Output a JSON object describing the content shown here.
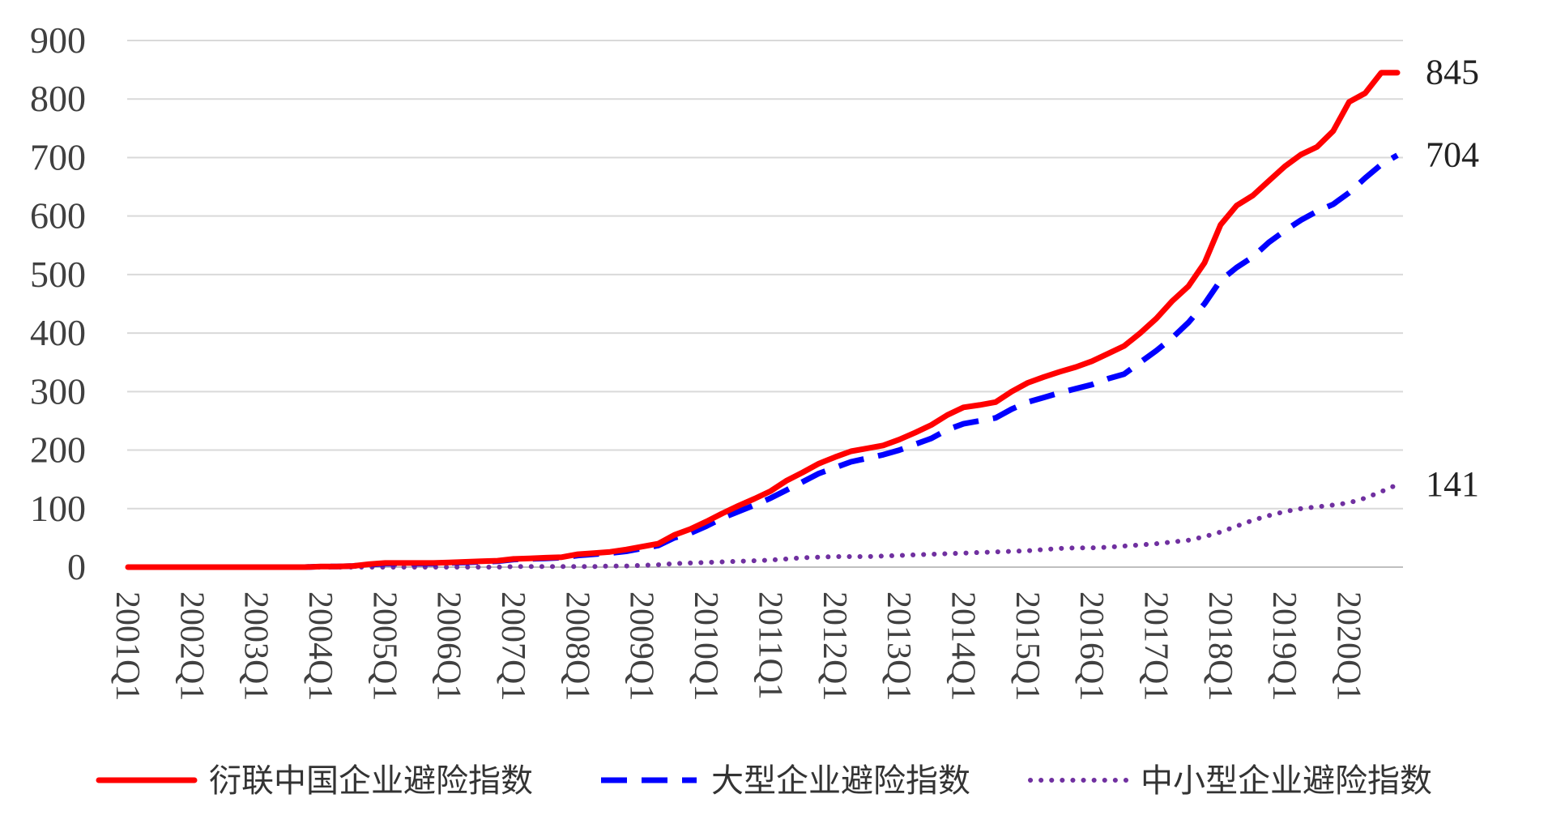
{
  "chart_data": {
    "type": "line",
    "title": "",
    "xlabel": "",
    "ylabel": "",
    "ylim": [
      0,
      900
    ],
    "y_ticks": [
      0,
      100,
      200,
      300,
      400,
      500,
      600,
      700,
      800,
      900
    ],
    "x_ticks": [
      "2001Q1",
      "2002Q1",
      "2003Q1",
      "2004Q1",
      "2005Q1",
      "2006Q1",
      "2007Q1",
      "2008Q1",
      "2009Q1",
      "2010Q1",
      "2011Q1",
      "2012Q1",
      "2013Q1",
      "2014Q1",
      "2015Q1",
      "2016Q1",
      "2017Q1",
      "2018Q1",
      "2019Q1",
      "2020Q1"
    ],
    "grid": "horizontal",
    "legend_position": "bottom",
    "x": [
      "2001Q1",
      "2001Q2",
      "2001Q3",
      "2001Q4",
      "2002Q1",
      "2002Q2",
      "2002Q3",
      "2002Q4",
      "2003Q1",
      "2003Q2",
      "2003Q3",
      "2003Q4",
      "2004Q1",
      "2004Q2",
      "2004Q3",
      "2004Q4",
      "2005Q1",
      "2005Q2",
      "2005Q3",
      "2005Q4",
      "2006Q1",
      "2006Q2",
      "2006Q3",
      "2006Q4",
      "2007Q1",
      "2007Q2",
      "2007Q3",
      "2007Q4",
      "2008Q1",
      "2008Q2",
      "2008Q3",
      "2008Q4",
      "2009Q1",
      "2009Q2",
      "2009Q3",
      "2009Q4",
      "2010Q1",
      "2010Q2",
      "2010Q3",
      "2010Q4",
      "2011Q1",
      "2011Q2",
      "2011Q3",
      "2011Q4",
      "2012Q1",
      "2012Q2",
      "2012Q3",
      "2012Q4",
      "2013Q1",
      "2013Q2",
      "2013Q3",
      "2013Q4",
      "2014Q1",
      "2014Q2",
      "2014Q3",
      "2014Q4",
      "2015Q1",
      "2015Q2",
      "2015Q3",
      "2015Q4",
      "2016Q1",
      "2016Q2",
      "2016Q3",
      "2016Q4",
      "2017Q1",
      "2017Q2",
      "2017Q3",
      "2017Q4",
      "2018Q1",
      "2018Q2",
      "2018Q3",
      "2018Q4",
      "2019Q1",
      "2019Q2",
      "2019Q3",
      "2019Q4",
      "2020Q1",
      "2020Q2",
      "2020Q3",
      "2020Q4"
    ],
    "series": [
      {
        "name": "衍联中国企业避险指数",
        "color": "#ff0000",
        "style": "solid",
        "end_label": "845",
        "values": [
          0,
          0,
          0,
          0,
          0,
          0,
          0,
          0,
          0,
          0,
          0,
          0,
          1,
          1,
          2,
          5,
          7,
          7,
          7,
          7,
          8,
          9,
          10,
          11,
          14,
          15,
          16,
          17,
          22,
          24,
          26,
          30,
          35,
          40,
          55,
          65,
          78,
          92,
          105,
          117,
          130,
          148,
          162,
          177,
          188,
          198,
          203,
          208,
          218,
          230,
          243,
          260,
          273,
          277,
          282,
          300,
          315,
          325,
          334,
          342,
          352,
          365,
          378,
          400,
          425,
          455,
          480,
          520,
          585,
          618,
          635,
          660,
          685,
          705,
          718,
          745,
          795,
          810,
          845,
          845
        ]
      },
      {
        "name": "大型企业避险指数",
        "color": "#0000ff",
        "style": "dashed",
        "end_label": "704",
        "values": [
          0,
          0,
          0,
          0,
          0,
          0,
          0,
          0,
          0,
          0,
          0,
          0,
          1,
          1,
          2,
          4,
          6,
          6,
          6,
          6,
          7,
          8,
          9,
          10,
          13,
          14,
          15,
          16,
          20,
          22,
          24,
          27,
          32,
          37,
          50,
          58,
          70,
          84,
          95,
          106,
          118,
          132,
          146,
          160,
          170,
          180,
          186,
          192,
          200,
          210,
          220,
          235,
          245,
          250,
          255,
          270,
          282,
          290,
          298,
          305,
          312,
          322,
          330,
          350,
          370,
          392,
          418,
          450,
          490,
          512,
          530,
          555,
          575,
          593,
          608,
          620,
          640,
          665,
          688,
          704
        ]
      },
      {
        "name": "中小型企业避险指数",
        "color": "#7030a0",
        "style": "dotted",
        "end_label": "141",
        "values": [
          0,
          0,
          0,
          0,
          0,
          0,
          0,
          0,
          0,
          0,
          0,
          0,
          0,
          0,
          0,
          0,
          0,
          0,
          0,
          0,
          0,
          0,
          0,
          0,
          1,
          1,
          1,
          1,
          1,
          1,
          2,
          2,
          3,
          4,
          6,
          7,
          8,
          9,
          10,
          11,
          12,
          14,
          16,
          17,
          18,
          18,
          18,
          19,
          20,
          21,
          22,
          23,
          24,
          25,
          26,
          27,
          28,
          30,
          32,
          33,
          33,
          34,
          36,
          38,
          40,
          43,
          46,
          52,
          60,
          70,
          80,
          88,
          95,
          100,
          103,
          106,
          110,
          118,
          129,
          141
        ]
      }
    ]
  }
}
